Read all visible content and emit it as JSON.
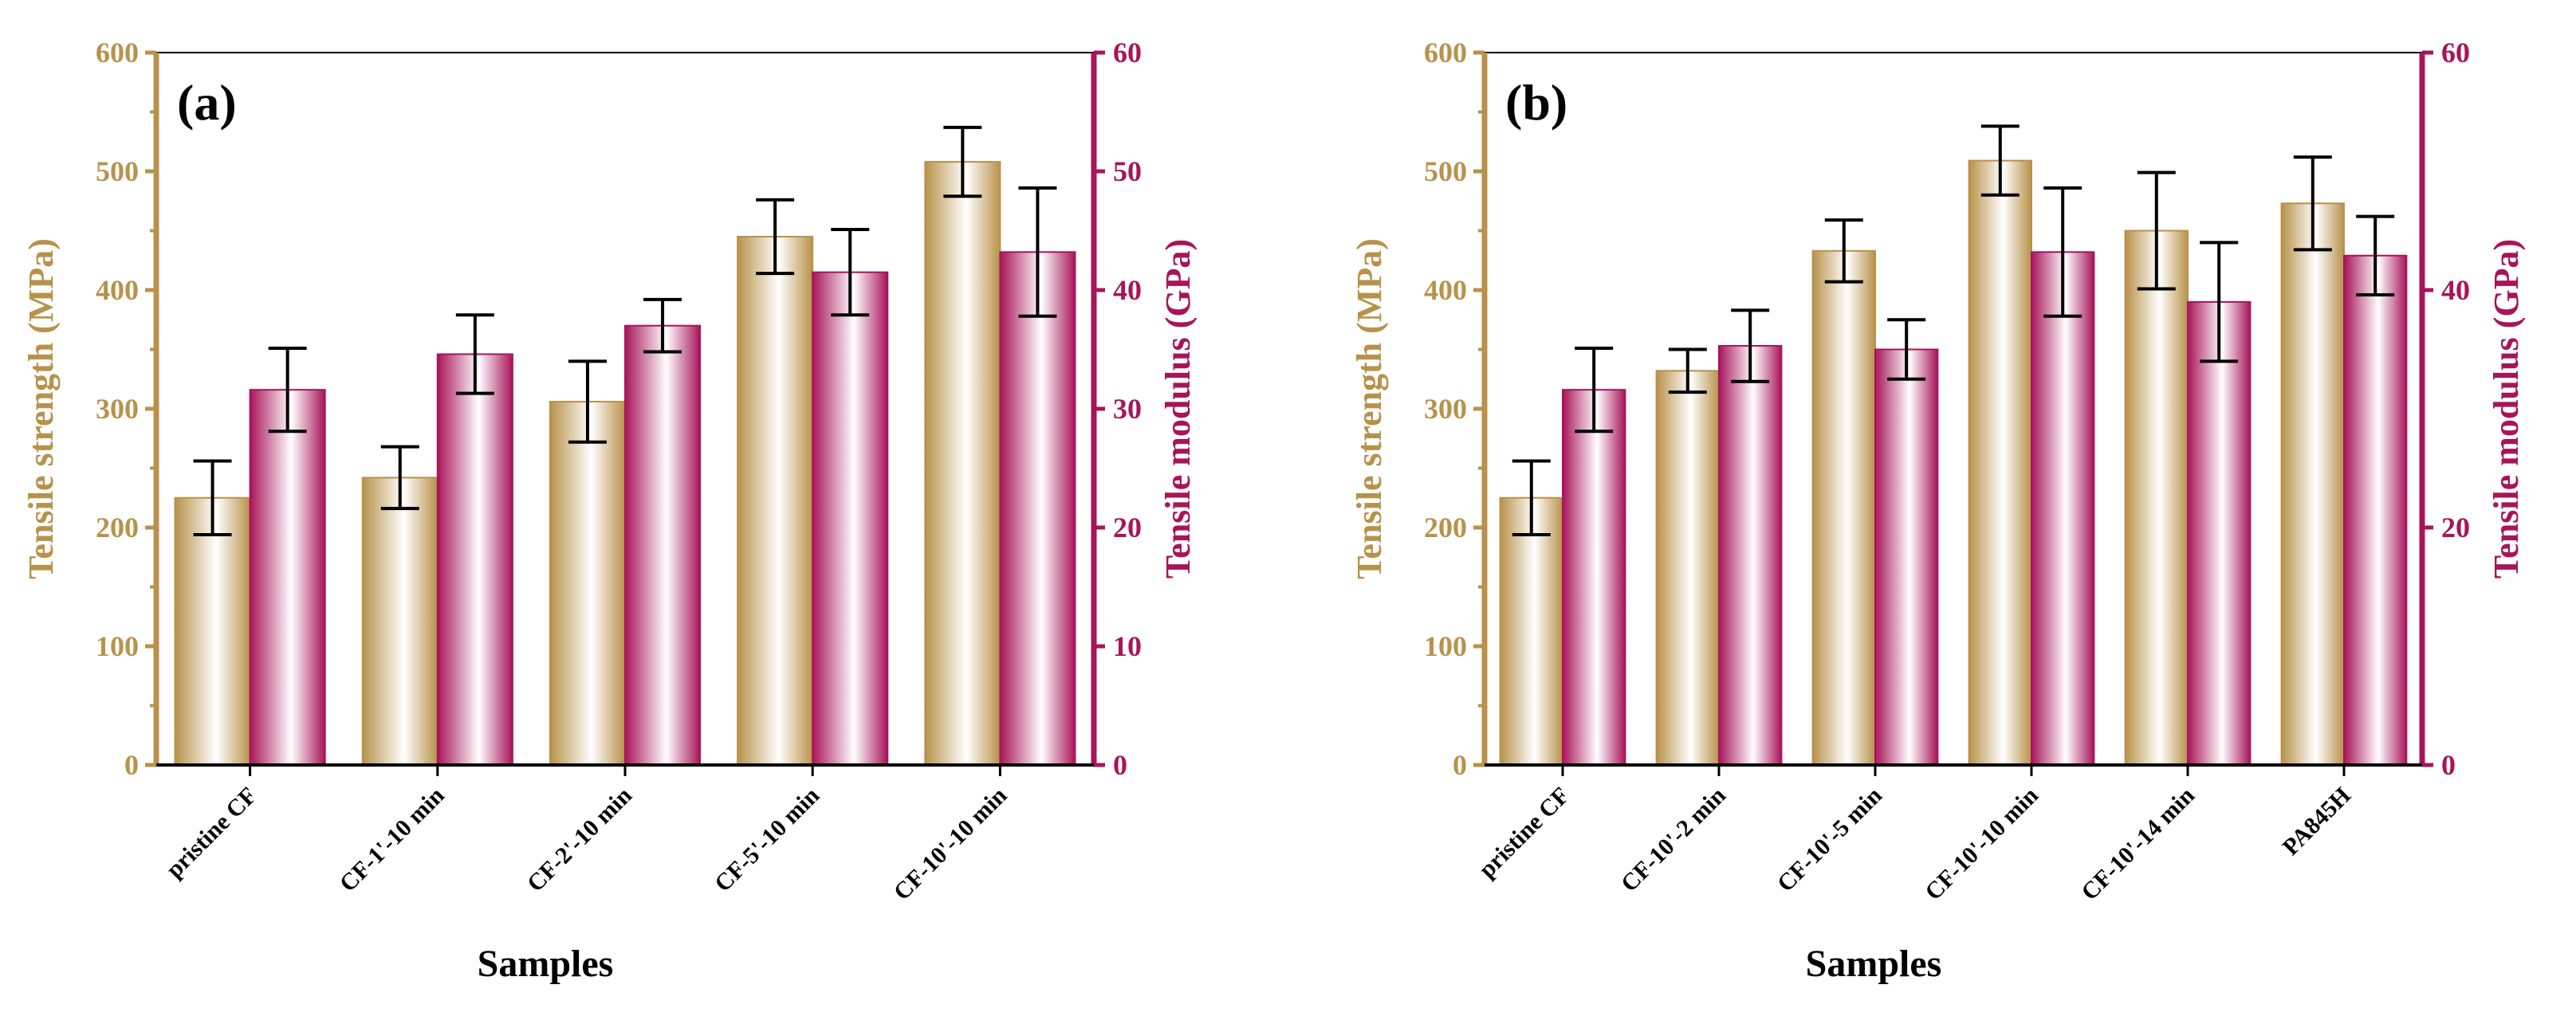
{
  "colors": {
    "strength": "#b8924a",
    "modulus": "#a8145a",
    "axis_text": "#b8924a",
    "modulus_text": "#a8145a",
    "black": "#000000"
  },
  "chart_data": [
    {
      "type": "bar",
      "panel_label": "(a)",
      "xlabel": "Samples",
      "ylabel_left": "Tensile strength (MPa)",
      "ylabel_right": "Tensile modulus (GPa)",
      "ylim_left": [
        0,
        600
      ],
      "ylim_right": [
        0,
        60
      ],
      "yticks_left": [
        "0",
        "100",
        "200",
        "300",
        "400",
        "500",
        "600"
      ],
      "yticks_right": [
        "0",
        "10",
        "20",
        "30",
        "40",
        "50",
        "60"
      ],
      "categories": [
        "pristine CF",
        "CF-1'-10 min",
        "CF-2'-10 min",
        "CF-5'-10 min",
        "CF-10'-10 min"
      ],
      "series": [
        {
          "name": "Tensile strength",
          "axis": "left",
          "values": [
            225,
            242,
            306,
            445,
            508
          ],
          "errors": [
            31,
            26,
            34,
            31,
            29
          ]
        },
        {
          "name": "Tensile modulus",
          "axis": "right",
          "values": [
            31.6,
            34.6,
            37.0,
            41.5,
            43.2
          ],
          "errors": [
            3.5,
            3.3,
            2.2,
            3.6,
            5.4
          ]
        }
      ]
    },
    {
      "type": "bar",
      "panel_label": "(b)",
      "xlabel": "Samples",
      "ylabel_left": "Tensile strength (MPa)",
      "ylabel_right": "Tensile modulus (GPa)",
      "ylim_left": [
        0,
        600
      ],
      "ylim_right": [
        0,
        60
      ],
      "yticks_left": [
        "0",
        "100",
        "200",
        "300",
        "400",
        "500",
        "600"
      ],
      "yticks_right": [
        "0",
        "20",
        "40",
        "60"
      ],
      "categories": [
        "pristine CF",
        "CF-10'-2 min",
        "CF-10'-5 min",
        "CF-10'-10 min",
        "CF-10'-14 min",
        "PA845H"
      ],
      "series": [
        {
          "name": "Tensile strength",
          "axis": "left",
          "values": [
            225,
            332,
            433,
            509,
            450,
            473
          ],
          "errors": [
            31,
            18,
            26,
            29,
            49,
            39
          ]
        },
        {
          "name": "Tensile modulus",
          "axis": "right",
          "values": [
            31.6,
            35.3,
            35.0,
            43.2,
            39.0,
            42.9
          ],
          "errors": [
            3.5,
            3.0,
            2.5,
            5.4,
            5.0,
            3.3
          ]
        }
      ]
    }
  ]
}
